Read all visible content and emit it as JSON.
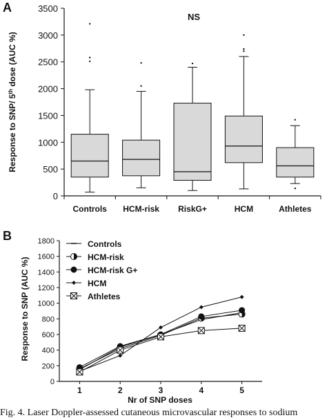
{
  "figure": {
    "caption": "Fig. 4. Laser Doppler-assessed cutaneous microvascular responses to sodium"
  },
  "chart_data": [
    {
      "panel": "A",
      "type": "box",
      "ylabel": "Response to SNP/ 5th dose (AUC %)",
      "ylabel_parts": [
        "Response to SNP/ 5",
        "th",
        " dose (AUC %)"
      ],
      "annotation": "NS",
      "ylim": [
        0,
        3500
      ],
      "yticks": [
        0,
        500,
        1000,
        1500,
        2000,
        2500,
        3000,
        3500
      ],
      "grid": false,
      "categories": [
        "Controls",
        "HCM-risk",
        "RiskG+",
        "HCM",
        "Athletes"
      ],
      "boxes": [
        {
          "min": 70,
          "q1": 350,
          "median": 650,
          "q3": 1150,
          "max": 1980,
          "outliers": [
            2510,
            2580,
            3210
          ]
        },
        {
          "min": 150,
          "q1": 375,
          "median": 680,
          "q3": 1040,
          "max": 1950,
          "outliers": [
            2050,
            2480
          ]
        },
        {
          "min": 100,
          "q1": 290,
          "median": 450,
          "q3": 1730,
          "max": 2400,
          "outliers": [
            2470
          ]
        },
        {
          "min": 130,
          "q1": 620,
          "median": 930,
          "q3": 1490,
          "max": 2600,
          "outliers": [
            2700,
            2740,
            3000
          ]
        },
        {
          "min": 230,
          "q1": 350,
          "median": 560,
          "q3": 900,
          "max": 1310,
          "outliers": [
            140,
            1420
          ]
        }
      ]
    },
    {
      "panel": "B",
      "type": "line",
      "xlabel": "Nr of SNP doses",
      "ylabel": "Response to SNP (AUC %)",
      "x": [
        1,
        2,
        3,
        4,
        5
      ],
      "xlim": [
        0.5,
        5.5
      ],
      "ylim": [
        0,
        1800
      ],
      "yticks": [
        0,
        200,
        400,
        600,
        800,
        1000,
        1200,
        1400,
        1600,
        1800
      ],
      "grid": false,
      "legend_position": "top-left",
      "series": [
        {
          "name": "Controls",
          "marker": "dash",
          "values": [
            150,
            440,
            600,
            790,
            880
          ]
        },
        {
          "name": "HCM-risk",
          "marker": "half-circle",
          "values": [
            160,
            420,
            590,
            810,
            860
          ]
        },
        {
          "name": "HCM-risk G+",
          "marker": "filled-circle",
          "values": [
            180,
            450,
            600,
            830,
            910
          ]
        },
        {
          "name": "HCM",
          "marker": "diamond",
          "values": [
            130,
            330,
            690,
            950,
            1080
          ]
        },
        {
          "name": "Athletes",
          "marker": "boxed-x",
          "values": [
            120,
            400,
            570,
            650,
            680
          ]
        }
      ]
    }
  ]
}
